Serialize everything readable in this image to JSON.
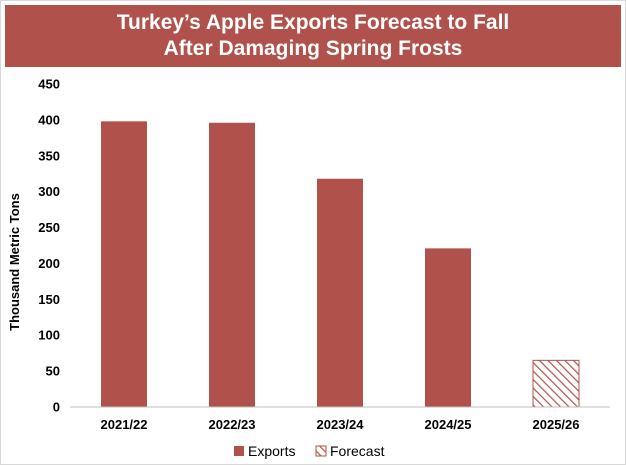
{
  "title": {
    "line1": "Turkey’s Apple Exports Forecast to Fall",
    "line2": "After Damaging Spring Frosts"
  },
  "colors": {
    "banner": "#b0524b",
    "bar": "#b0524b",
    "axis": "#bfbfbf"
  },
  "chart_data": {
    "type": "bar",
    "title": "Turkey’s Apple Exports Forecast to Fall After Damaging Spring Frosts",
    "xlabel": "",
    "ylabel": "Thousand Metric Tons",
    "categories": [
      "2021/22",
      "2022/23",
      "2023/24",
      "2024/25",
      "2025/26"
    ],
    "series": [
      {
        "name": "Exports",
        "values": [
          398,
          396,
          318,
          221,
          null
        ],
        "fill": "solid"
      },
      {
        "name": "Forecast",
        "values": [
          null,
          null,
          null,
          null,
          65
        ],
        "fill": "hatched"
      }
    ],
    "ylim": [
      0,
      450
    ],
    "yticks": [
      0,
      50,
      100,
      150,
      200,
      250,
      300,
      350,
      400,
      450
    ],
    "grid": false,
    "legend": "bottom-center"
  }
}
